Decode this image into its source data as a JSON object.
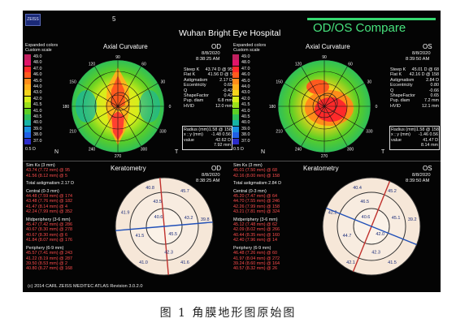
{
  "header": {
    "icon": "zeiss-icon",
    "number": "5",
    "hospital": "Wuhan Bright Eye Hospital",
    "title": "OD/OS Compare",
    "accent": "#47e37d"
  },
  "scale": {
    "line1": "Expanded colors",
    "line2": "Custom scale",
    "values": [
      "49.0",
      "48.0",
      "47.0",
      "46.0",
      "45.0",
      "44.0",
      "43.0",
      "42.0",
      "41.5",
      "41.0",
      "40.5",
      "40.0",
      "39.0",
      "38.0",
      "37.0"
    ],
    "colors": [
      "#c1205f",
      "#e0156a",
      "#ff2a2a",
      "#ff5a1e",
      "#ff8c1a",
      "#ffb01c",
      "#f3d41c",
      "#d6ee1a",
      "#9ae01a",
      "#5ccf25",
      "#2fbf59",
      "#16b3a5",
      "#1a90e0",
      "#2060e6",
      "#2c2cc9"
    ],
    "step": "0.5 D"
  },
  "od_axial": {
    "title": "Axial Curvature",
    "eye": "OD",
    "date": "8/8/2020",
    "time": "8:38:25 AM",
    "stats": [
      [
        "Steep K",
        "43.74 D @ 95"
      ],
      [
        "Flat K",
        "41.56 D @ 5"
      ],
      [
        "Astigmatism",
        "2.17 D"
      ],
      [
        "Eccentricity",
        "0.65"
      ],
      [
        "Q",
        "-0.42"
      ],
      [
        "ShapeFactor",
        "0.42"
      ],
      [
        "Pup. diam",
        "6.8 mm"
      ],
      [
        "HVID",
        "12.0 mm"
      ]
    ],
    "radius": [
      [
        "Radius (mm)",
        "1.58 @ 158"
      ],
      [
        "x ; y (mm)",
        "-1.48  0.56"
      ],
      [
        "value",
        "42.62 D"
      ],
      [
        "",
        "7.92 mm"
      ]
    ],
    "axis_labels": [
      "90",
      "120",
      "60",
      "150",
      "30",
      "180",
      "0",
      "210",
      "330",
      "240",
      "300",
      "270"
    ],
    "nasal": "N",
    "temporal": "T"
  },
  "os_axial": {
    "title": "Axial Curvature",
    "eye": "OS",
    "date": "8/8/2020",
    "time": "8:39:50 AM",
    "stats": [
      [
        "Steep K",
        "45.01 D @ 68"
      ],
      [
        "Flat K",
        "42.16 D @ 158"
      ],
      [
        "Astigmatism",
        "2.84 D"
      ],
      [
        "Eccentricity",
        "0.80"
      ],
      [
        "Q",
        "-0.66"
      ],
      [
        "ShapeFactor",
        "0.65"
      ],
      [
        "Pup. diam",
        "7.2 mm"
      ],
      [
        "HVID",
        "12.1 mm"
      ]
    ],
    "radius": [
      [
        "Radius (mm)",
        "1.58 @ 158"
      ],
      [
        "x ; y (mm)",
        "-1.46  0.56"
      ],
      [
        "value",
        "41.47 D"
      ],
      [
        "",
        "8.14 mm"
      ]
    ],
    "axis_labels": [
      "90",
      "120",
      "60",
      "150",
      "30",
      "180",
      "0",
      "210",
      "330",
      "240",
      "300",
      "270"
    ],
    "nasal": "N",
    "temporal": "T"
  },
  "od_kerato": {
    "title": "Keratometry",
    "eye": "OD",
    "date": "8/8/2020",
    "time": "8:38:25 AM",
    "simk_head": "Sim Ks (3 mm)",
    "simk": [
      "43.74 (7.72 mm) @ 95",
      "41.56 (8.12 mm) @ 5"
    ],
    "total": "Total astigmatism 2.17 D",
    "central_head": "Central (0-3 mm)",
    "central": [
      "44.48 (7.59 mm) @ 174",
      "43.48 (7.76 mm) @ 182",
      "41.47 (8.14 mm) @ 4",
      "42.24 (7.99 mm) @ 352"
    ],
    "mid_head": "Midperiphery (3-6 mm)",
    "mid": [
      "45.47 (7.42 mm) @ 286",
      "40.67 (8.30 mm) @ 278",
      "40.67 (8.30 mm) @ 6",
      "41.84 (8.07 mm) @ 176"
    ],
    "per_head": "Periphery (6-9 mm)",
    "per": [
      "45.57 (7.41 mm) @ 243",
      "41.22 (8.19 mm) @ 287",
      "39.50 (8.53 mm) @ 2",
      "40.80 (8.27 mm) @ 168"
    ],
    "zone_vals": [
      "43.5",
      "41.5",
      "42.3",
      "43.2",
      "40.8",
      "41.9",
      "41.6",
      "39.8",
      "45.7",
      "41.0",
      "40.6",
      "45.5"
    ]
  },
  "os_kerato": {
    "title": "Keratometry",
    "eye": "OS",
    "date": "8/8/2020",
    "time": "8:39:50 AM",
    "simk_head": "Sim Ks (3 mm)",
    "simk": [
      "45.01 (7.50 mm) @ 68",
      "42.16 (8.00 mm) @ 158"
    ],
    "total": "Total astigmatism 2.84 D",
    "central_head": "Central (0-3 mm)",
    "central": [
      "45.20 (7.47 mm) @ 64",
      "44.70 (7.55 mm) @ 246",
      "42.26 (7.99 mm) @ 158",
      "43.21 (7.81 mm) @ 324"
    ],
    "mid_head": "Midperiphery (3-6 mm)",
    "mid": [
      "45.12 (7.48 mm) @ 62",
      "42.09 (8.02 mm) @ 266",
      "40.44 (8.35 mm) @ 160",
      "42.40 (7.96 mm) @ 14"
    ],
    "per_head": "Periphery (6-9 mm)",
    "per": [
      "46.48 (7.26 mm) @ 60",
      "41.97 (8.04 mm) @ 272",
      "39.24 (8.60 mm) @ 164",
      "40.57 (8.32 mm) @ 26"
    ],
    "zone_vals": [
      "46.5",
      "44.7",
      "42.3",
      "45.1",
      "40.4",
      "42.2",
      "41.5",
      "39.2",
      "45.2",
      "42.1",
      "40.6",
      "42.0"
    ]
  },
  "footer": "(c) 2014 CARL ZEISS MEDITEC    ATLAS    Revision  3.0.2.0",
  "caption": "图 1 角膜地形图原始图"
}
